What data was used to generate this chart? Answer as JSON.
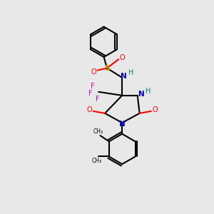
{
  "bg_color": "#e8e8e8",
  "bond_color": "#000000",
  "atom_colors": {
    "N": "#0000cd",
    "O": "#ff0000",
    "S": "#ccaa00",
    "F": "#cc00cc",
    "H": "#008080",
    "C": "#000000"
  },
  "figsize": [
    3.0,
    3.0
  ],
  "dpi": 100
}
